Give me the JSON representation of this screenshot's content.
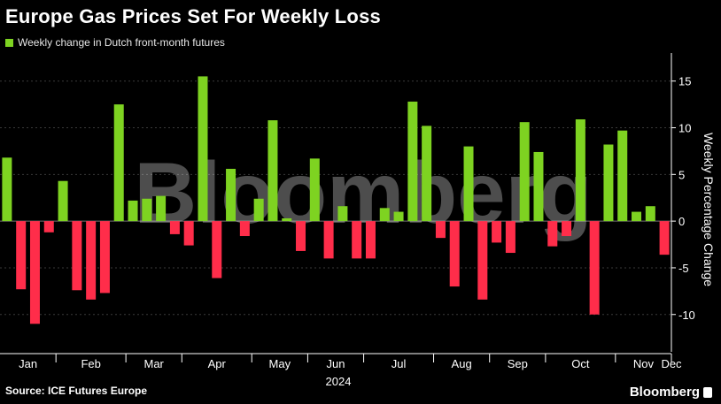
{
  "title": "Europe Gas Prices Set For Weekly Loss",
  "source": "Source: ICE Futures Europe",
  "brand": "Bloomberg",
  "watermark": "Bloomberg",
  "colors": {
    "positive": "#7ed321",
    "negative": "#ff2d4a",
    "grid": "#3a3a3a",
    "axis": "#ffffff"
  },
  "chart_data": {
    "type": "bar",
    "legend": [
      "Weekly change in Dutch front-month futures"
    ],
    "ylabel": "Weekly Percentage Change",
    "xlabel": "2024",
    "ylim": [
      -14,
      18
    ],
    "yticks": [
      15,
      10,
      5,
      0,
      -5,
      -10
    ],
    "months": [
      "Jan",
      "Feb",
      "Mar",
      "Apr",
      "May",
      "Jun",
      "Jul",
      "Aug",
      "Sep",
      "Oct",
      "Nov",
      "Dec"
    ],
    "month_start_week": [
      0,
      4,
      9,
      13,
      18,
      22,
      26,
      31,
      35,
      39,
      44,
      48
    ],
    "values": [
      6.8,
      -7.3,
      -11.0,
      -1.2,
      4.3,
      -7.4,
      -8.4,
      -7.7,
      12.5,
      2.2,
      2.4,
      2.7,
      -1.4,
      -2.6,
      15.5,
      -6.1,
      5.6,
      -1.6,
      2.4,
      10.8,
      0.3,
      -3.2,
      6.7,
      -4.0,
      1.6,
      -4.0,
      -4.0,
      1.4,
      1.0,
      12.8,
      10.2,
      -1.8,
      -7.0,
      8.0,
      -8.4,
      -2.3,
      -3.4,
      10.6,
      7.4,
      -2.7,
      -1.6,
      10.9,
      -10.0,
      8.2,
      9.7,
      1.0,
      1.6,
      -3.6
    ]
  }
}
